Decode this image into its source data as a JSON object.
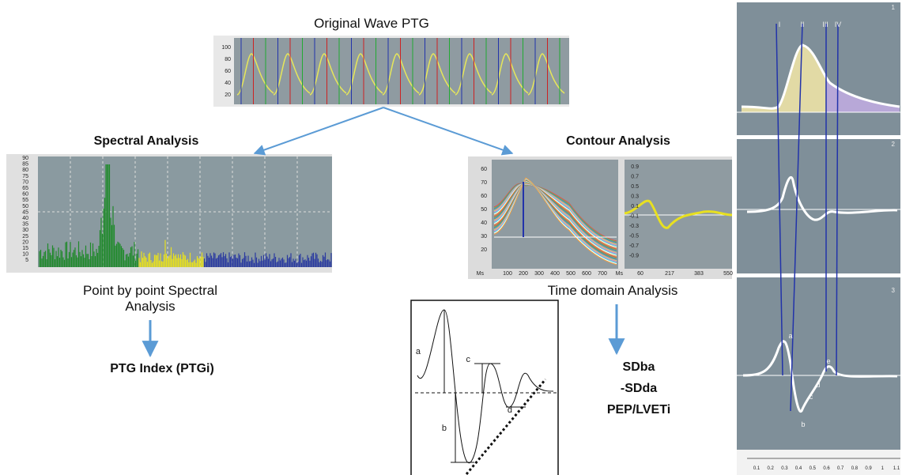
{
  "original_wave": {
    "title": "Original Wave PTG",
    "yticks": [
      "100",
      "80",
      "60",
      "40",
      "20"
    ]
  },
  "spectral": {
    "title": "Spectral Analysis",
    "yticks": [
      "90",
      "85",
      "80",
      "75",
      "70",
      "65",
      "60",
      "55",
      "50",
      "45",
      "40",
      "35",
      "30",
      "25",
      "20",
      "15",
      "10",
      "5"
    ],
    "caption": "Point by point Spectral Analysis",
    "result": "PTG Index (PTGi)"
  },
  "contour": {
    "title": "Contour Analysis",
    "left_yticks": [
      "60",
      "70",
      "60",
      "50",
      "40",
      "30",
      "20"
    ],
    "right_yticks": [
      "0.9",
      "0.7",
      "0.5",
      "0.3",
      "0.1",
      "-0.1",
      "-0.3",
      "-0.5",
      "-0.7",
      "-0.9"
    ],
    "unit": "Ms",
    "xticks": [
      "100",
      "200",
      "300",
      "400",
      "500",
      "600",
      "700"
    ],
    "right_xticks": [
      "60",
      "217",
      "383",
      "550"
    ],
    "caption": "Time domain Analysis",
    "results": [
      "SDba",
      "-SDda",
      "PEP/LVETi"
    ]
  },
  "waveform": {
    "labels": [
      "a",
      "b",
      "c",
      "d"
    ]
  },
  "right_panel": {
    "panel_numbers": [
      "1",
      "2",
      "3"
    ],
    "markers": [
      "I",
      "II",
      "III",
      "IV"
    ],
    "points": [
      "a",
      "b",
      "c",
      "d",
      "e"
    ],
    "xticks": [
      "0.1",
      "0.2",
      "0.3",
      "0.4",
      "0.5",
      "0.6",
      "0.7",
      "0.8",
      "0.9",
      "1",
      "1.1"
    ]
  }
}
